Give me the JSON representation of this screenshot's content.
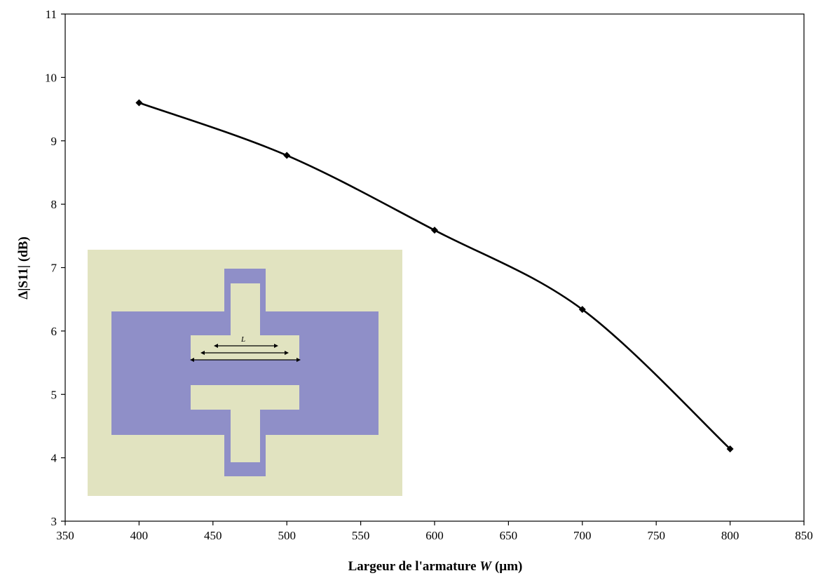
{
  "chart_data": {
    "type": "line",
    "title": "",
    "xlabel": {
      "prefix": "Largeur de l'armature ",
      "symbol": "W",
      "unit": " (µm)"
    },
    "ylabel": "Δ|S11| (dB)",
    "xlim": [
      350,
      850
    ],
    "ylim": [
      3,
      11
    ],
    "xticks": [
      "350",
      "400",
      "450",
      "500",
      "550",
      "600",
      "650",
      "700",
      "750",
      "800",
      "850"
    ],
    "yticks": [
      "3",
      "4",
      "5",
      "6",
      "7",
      "8",
      "9",
      "10",
      "11"
    ],
    "grid": false,
    "legend": "none",
    "series": [
      {
        "marker": "diamond",
        "smooth": true,
        "x": [
          400,
          500,
          600,
          700,
          800
        ],
        "y": [
          9.6,
          8.77,
          7.59,
          6.34,
          4.14
        ]
      }
    ],
    "colors": {
      "line": "#000000",
      "inset_background": "#e1e3c0",
      "inset_metal": "#8f8fc8"
    },
    "inset": {
      "description_label": "L"
    }
  }
}
